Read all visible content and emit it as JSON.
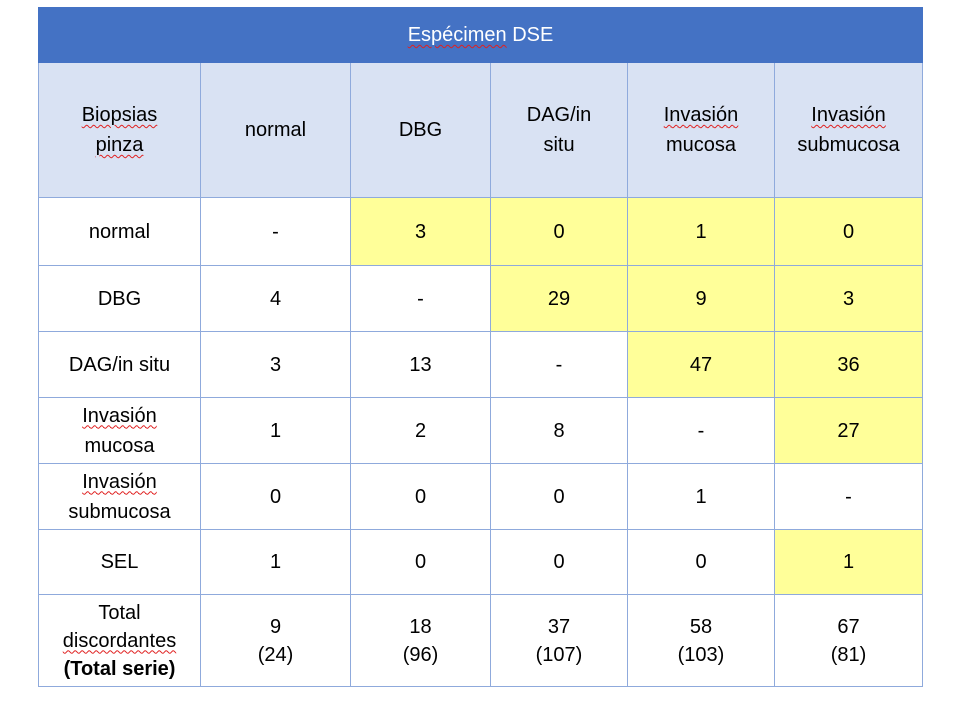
{
  "title": "Espécimen DSE",
  "corner_header": [
    "Biopsias",
    "pinza"
  ],
  "columns": [
    [
      "normal"
    ],
    [
      "DBG"
    ],
    [
      "DAG/in",
      "situ"
    ],
    [
      "Invasión",
      "mucosa"
    ],
    [
      "Invasión",
      "submucosa"
    ]
  ],
  "highlight_color": "#ffff99",
  "header_color": "#4472c4",
  "rows": [
    {
      "label": [
        "normal"
      ],
      "cells": [
        {
          "v": "-",
          "hl": false
        },
        {
          "v": "3",
          "hl": true
        },
        {
          "v": "0",
          "hl": true
        },
        {
          "v": "1",
          "hl": true
        },
        {
          "v": "0",
          "hl": true
        }
      ]
    },
    {
      "label": [
        "DBG"
      ],
      "cells": [
        {
          "v": "4",
          "hl": false
        },
        {
          "v": "-",
          "hl": false
        },
        {
          "v": "29",
          "hl": true
        },
        {
          "v": "9",
          "hl": true
        },
        {
          "v": "3",
          "hl": true
        }
      ]
    },
    {
      "label": [
        "DAG/in situ"
      ],
      "cells": [
        {
          "v": "3",
          "hl": false
        },
        {
          "v": "13",
          "hl": false
        },
        {
          "v": "-",
          "hl": false
        },
        {
          "v": "47",
          "hl": true
        },
        {
          "v": "36",
          "hl": true
        }
      ]
    },
    {
      "label": [
        "Invasión",
        "mucosa"
      ],
      "cells": [
        {
          "v": "1",
          "hl": false
        },
        {
          "v": "2",
          "hl": false
        },
        {
          "v": "8",
          "hl": false
        },
        {
          "v": "-",
          "hl": false
        },
        {
          "v": "27",
          "hl": true
        }
      ]
    },
    {
      "label": [
        "Invasión",
        "submucosa"
      ],
      "cells": [
        {
          "v": "0",
          "hl": false
        },
        {
          "v": "0",
          "hl": false
        },
        {
          "v": "0",
          "hl": false
        },
        {
          "v": "1",
          "hl": false
        },
        {
          "v": "-",
          "hl": false
        }
      ]
    },
    {
      "label": [
        "SEL"
      ],
      "cells": [
        {
          "v": "1",
          "hl": false
        },
        {
          "v": "0",
          "hl": false
        },
        {
          "v": "0",
          "hl": false
        },
        {
          "v": "0",
          "hl": false
        },
        {
          "v": "1",
          "hl": true
        }
      ]
    }
  ],
  "total_row": {
    "label": [
      "Total",
      "discordantes",
      "(Total serie)"
    ],
    "cells": [
      [
        "9",
        "(24)"
      ],
      [
        "18",
        "(96)"
      ],
      [
        "37",
        "(107)"
      ],
      [
        "58",
        "(103)"
      ],
      [
        "67",
        "(81)"
      ]
    ]
  }
}
